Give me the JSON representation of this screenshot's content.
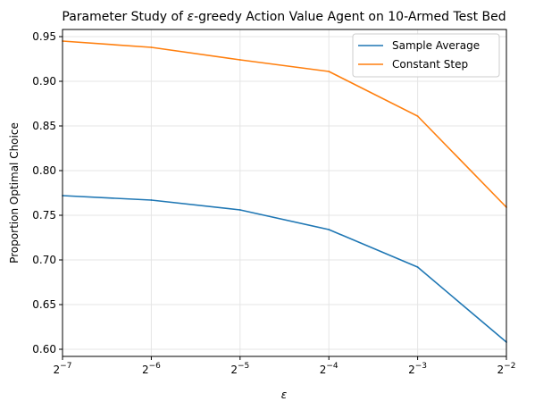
{
  "chart_data": {
    "type": "line",
    "title_prefix": "Parameter Study of ",
    "title_symbol": "ε",
    "title_suffix": "-greedy Action Value Agent on 10-Armed Test Bed",
    "xlabel": "ε",
    "ylabel": "Proportion Optimal Choice",
    "x_scale": "log2",
    "x": [
      0.0078125,
      0.015625,
      0.03125,
      0.0625,
      0.125,
      0.25
    ],
    "x_tick_base": "2",
    "x_tick_exponents": [
      "−7",
      "−6",
      "−5",
      "−4",
      "−3",
      "−2"
    ],
    "ylim": [
      0.592,
      0.958
    ],
    "y_ticks": [
      "0.60",
      "0.65",
      "0.70",
      "0.75",
      "0.80",
      "0.85",
      "0.90",
      "0.95"
    ],
    "grid": true,
    "legend_position": "upper right",
    "series": [
      {
        "name": "Sample Average",
        "color": "#1f77b4",
        "values": [
          0.772,
          0.767,
          0.756,
          0.734,
          0.692,
          0.608
        ]
      },
      {
        "name": "Constant Step",
        "color": "#ff7f0e",
        "values": [
          0.945,
          0.938,
          0.924,
          0.911,
          0.861,
          0.759
        ]
      }
    ]
  }
}
